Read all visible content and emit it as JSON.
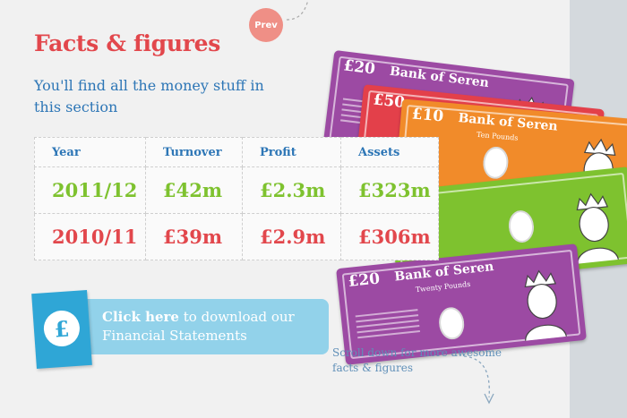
{
  "nav": {
    "prev_label": "Prev"
  },
  "header": {
    "title": "Facts & figures",
    "subtitle": "You'll find all the money stuff in this section"
  },
  "table": {
    "headers": [
      "Year",
      "Turnover",
      "Profit",
      "Assets"
    ],
    "rows": [
      [
        "2011/12",
        "£42m",
        "£2.3m",
        "£323m"
      ],
      [
        "2010/11",
        "£39m",
        "£2.9m",
        "£306m"
      ]
    ]
  },
  "notes": [
    {
      "value": "£20",
      "bank": "Bank of Seren",
      "denomination": "",
      "color": "#9c4aa3"
    },
    {
      "value": "£50",
      "bank": "",
      "denomination": "",
      "color": "#e3404a"
    },
    {
      "value": "£10",
      "bank": "Bank of Seren",
      "denomination": "Ten Pounds",
      "color": "#f18b2a"
    },
    {
      "value": "",
      "bank": "",
      "denomination": "",
      "color": "#7ec22f"
    },
    {
      "value": "£20",
      "bank": "Bank of Seren",
      "denomination": "Twenty Pounds",
      "color": "#9c4aa3"
    }
  ],
  "download": {
    "icon_label": "£",
    "link_text": "Click here",
    "rest_text": " to download our Financial Statements"
  },
  "scroll_hint": "Scroll down for more awesome facts & figures",
  "colors": {
    "title": "#e2474c",
    "subtitle": "#2d76b6",
    "green_row": "#7ec22f",
    "red_row": "#e2474c",
    "download_bar": "#92d2ea",
    "download_square": "#2fa6d6"
  }
}
